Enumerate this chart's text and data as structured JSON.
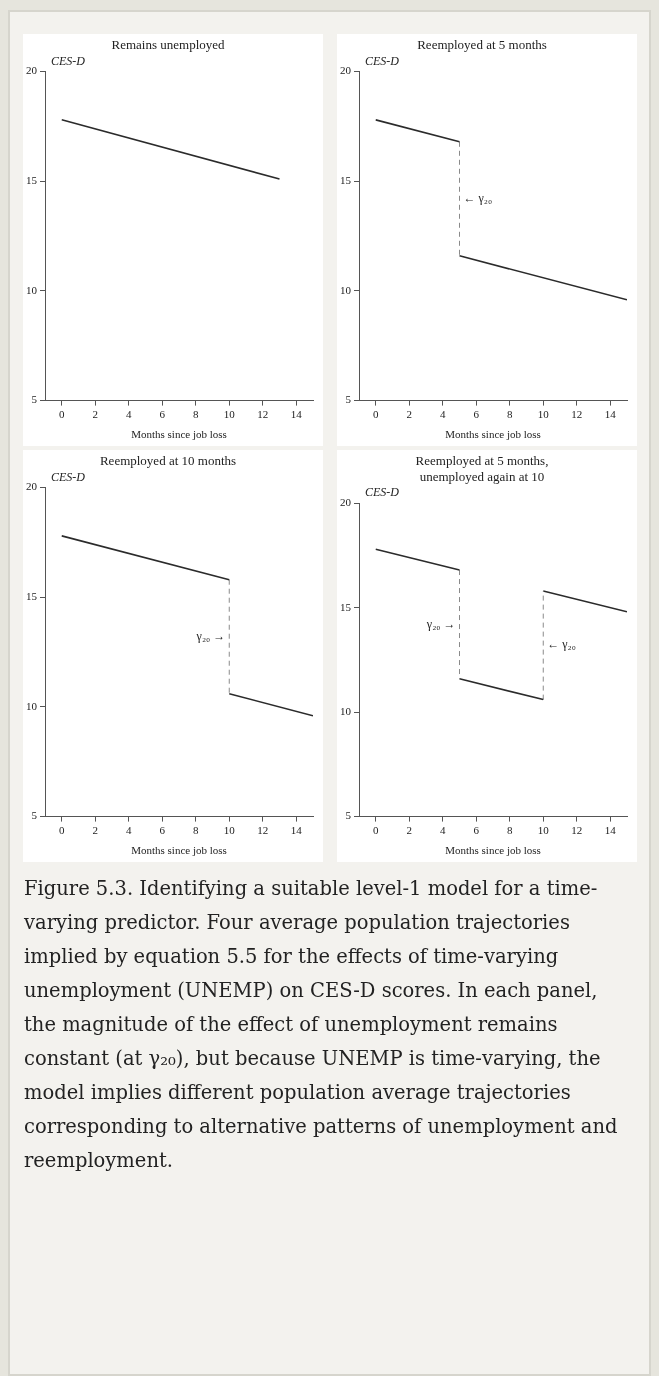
{
  "chart_data": [
    {
      "type": "line",
      "title": "Remains unemployed",
      "xlabel": "Months since job loss",
      "ylabel": "CES-D",
      "xlim": [
        -1,
        15
      ],
      "xticks": [
        0,
        2,
        4,
        6,
        8,
        10,
        12,
        14
      ],
      "ylim": [
        5,
        20
      ],
      "yticks": [
        5,
        10,
        15,
        20
      ],
      "series": [
        {
          "color": "#2b2b2b",
          "line_style": "solid",
          "x": [
            0,
            13
          ],
          "values": [
            17.8,
            15.1
          ]
        }
      ]
    },
    {
      "type": "line",
      "title": "Reemployed at 5 months",
      "xlabel": "Months since job loss",
      "ylabel": "CES-D",
      "xlim": [
        -1,
        15
      ],
      "xticks": [
        0,
        2,
        4,
        6,
        8,
        10,
        12,
        14
      ],
      "ylim": [
        5,
        20
      ],
      "yticks": [
        5,
        10,
        15,
        20
      ],
      "annotations": [
        "← γ₂₀"
      ],
      "series": [
        {
          "color": "#2b2b2b",
          "line_style": "solid",
          "x": [
            0,
            5
          ],
          "values": [
            17.8,
            16.8
          ]
        },
        {
          "color": "#8a8a8a",
          "line_style": "dashed",
          "x": [
            5,
            5
          ],
          "values": [
            16.8,
            11.6
          ]
        },
        {
          "color": "#2b2b2b",
          "line_style": "solid",
          "x": [
            5,
            15
          ],
          "values": [
            11.6,
            9.6
          ]
        }
      ]
    },
    {
      "type": "line",
      "title": "Reemployed at 10 months",
      "xlabel": "Months since job loss",
      "ylabel": "CES-D",
      "xlim": [
        -1,
        15
      ],
      "xticks": [
        0,
        2,
        4,
        6,
        8,
        10,
        12,
        14
      ],
      "ylim": [
        5,
        20
      ],
      "yticks": [
        5,
        10,
        15,
        20
      ],
      "annotations": [
        "γ₂₀ →"
      ],
      "series": [
        {
          "color": "#2b2b2b",
          "line_style": "solid",
          "x": [
            0,
            10
          ],
          "values": [
            17.8,
            15.8
          ]
        },
        {
          "color": "#8a8a8a",
          "line_style": "dashed",
          "x": [
            10,
            10
          ],
          "values": [
            15.8,
            10.6
          ]
        },
        {
          "color": "#2b2b2b",
          "line_style": "solid",
          "x": [
            10,
            15
          ],
          "values": [
            10.6,
            9.6
          ]
        }
      ]
    },
    {
      "type": "line",
      "title": "Reemployed at 5 months,\nunemployed again at 10",
      "xlabel": "Months since job loss",
      "ylabel": "CES-D",
      "xlim": [
        -1,
        15
      ],
      "xticks": [
        0,
        2,
        4,
        6,
        8,
        10,
        12,
        14
      ],
      "ylim": [
        5,
        20
      ],
      "yticks": [
        5,
        10,
        15,
        20
      ],
      "annotations": [
        "γ₂₀ →",
        "← γ₂₀"
      ],
      "series": [
        {
          "color": "#2b2b2b",
          "line_style": "solid",
          "x": [
            0,
            5
          ],
          "values": [
            17.8,
            16.8
          ]
        },
        {
          "color": "#8a8a8a",
          "line_style": "dashed",
          "x": [
            5,
            5
          ],
          "values": [
            16.8,
            11.6
          ]
        },
        {
          "color": "#2b2b2b",
          "line_style": "solid",
          "x": [
            5,
            10
          ],
          "values": [
            11.6,
            10.6
          ]
        },
        {
          "color": "#8a8a8a",
          "line_style": "dashed",
          "x": [
            10,
            10
          ],
          "values": [
            10.6,
            15.8
          ]
        },
        {
          "color": "#2b2b2b",
          "line_style": "solid",
          "x": [
            10,
            15
          ],
          "values": [
            15.8,
            14.8
          ]
        }
      ]
    },
    {
      "type": "other",
      "annotations": [
        "Figure 5.3. Identifying a suitable level-1 model for a time-varying predictor. Four average population trajectories implied by equation 5.5 for the effects of time-varying unemployment (UNEMP) on CES-D scores. In each panel, the magnitude of the effect of unemployment remains constant (at γ₂₀), but because UNEMP is time-varying, the model implies different population average trajectories corresponding to alternative patterns of unemployment and reemployment."
      ]
    }
  ]
}
